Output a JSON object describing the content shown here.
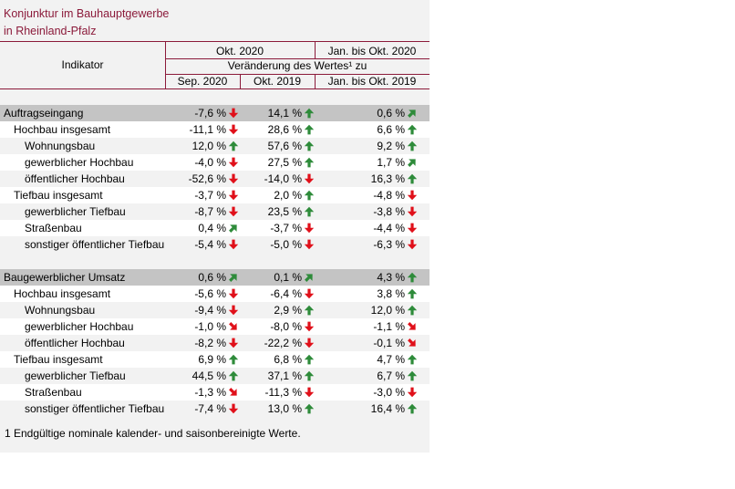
{
  "title_line1": "Konjunktur im Bauhauptgewerbe",
  "title_line2": "in Rheinland-Pfalz",
  "header": {
    "indikator": "Indikator",
    "okt2020": "Okt. 2020",
    "jan_okt2020": "Jan. bis Okt. 2020",
    "veraenderung": "Veränderung des Wertes¹ zu",
    "sep2020": "Sep. 2020",
    "okt2019": "Okt. 2019",
    "jan_okt2019": "Jan. bis Okt. 2019"
  },
  "colors": {
    "up": "#2e8b3a",
    "down": "#e0101a",
    "accent": "#8b1a3a"
  },
  "rows": [
    {
      "label": "Auftragseingang",
      "indent": 0,
      "section": true,
      "v1": "-7,6 %",
      "a1": "down",
      "v2": "14,1 %",
      "a2": "up",
      "v3": "0,6 %",
      "a3": "up-right"
    },
    {
      "label": "Hochbau insgesamt",
      "indent": 1,
      "v1": "-11,1 %",
      "a1": "down",
      "v2": "28,6 %",
      "a2": "up",
      "v3": "6,6 %",
      "a3": "up"
    },
    {
      "label": "Wohnungsbau",
      "indent": 2,
      "v1": "12,0 %",
      "a1": "up",
      "v2": "57,6 %",
      "a2": "up",
      "v3": "9,2 %",
      "a3": "up"
    },
    {
      "label": "gewerblicher Hochbau",
      "indent": 2,
      "v1": "-4,0 %",
      "a1": "down",
      "v2": "27,5 %",
      "a2": "up",
      "v3": "1,7 %",
      "a3": "up-right"
    },
    {
      "label": "öffentlicher Hochbau",
      "indent": 2,
      "v1": "-52,6 %",
      "a1": "down",
      "v2": "-14,0 %",
      "a2": "down",
      "v3": "16,3 %",
      "a3": "up"
    },
    {
      "label": "Tiefbau insgesamt",
      "indent": 1,
      "v1": "-3,7 %",
      "a1": "down",
      "v2": "2,0 %",
      "a2": "up",
      "v3": "-4,8 %",
      "a3": "down"
    },
    {
      "label": "gewerblicher Tiefbau",
      "indent": 2,
      "v1": "-8,7 %",
      "a1": "down",
      "v2": "23,5 %",
      "a2": "up",
      "v3": "-3,8 %",
      "a3": "down"
    },
    {
      "label": "Straßenbau",
      "indent": 2,
      "v1": "0,4 %",
      "a1": "up-right",
      "v2": "-3,7 %",
      "a2": "down",
      "v3": "-4,4 %",
      "a3": "down"
    },
    {
      "label": "sonstiger öffentlicher Tiefbau",
      "indent": 2,
      "v1": "-5,4 %",
      "a1": "down",
      "v2": "-5,0 %",
      "a2": "down",
      "v3": "-6,3 %",
      "a3": "down"
    },
    {
      "label": "Baugewerblicher Umsatz",
      "indent": 0,
      "section": true,
      "v1": "0,6 %",
      "a1": "up-right",
      "v2": "0,1 %",
      "a2": "up-right",
      "v3": "4,3 %",
      "a3": "up"
    },
    {
      "label": "Hochbau insgesamt",
      "indent": 1,
      "v1": "-5,6 %",
      "a1": "down",
      "v2": "-6,4 %",
      "a2": "down",
      "v3": "3,8 %",
      "a3": "up"
    },
    {
      "label": "Wohnungsbau",
      "indent": 2,
      "v1": "-9,4 %",
      "a1": "down",
      "v2": "2,9 %",
      "a2": "up",
      "v3": "12,0 %",
      "a3": "up"
    },
    {
      "label": "gewerblicher Hochbau",
      "indent": 2,
      "v1": "-1,0 %",
      "a1": "down-right",
      "v2": "-8,0 %",
      "a2": "down",
      "v3": "-1,1 %",
      "a3": "down-right"
    },
    {
      "label": "öffentlicher Hochbau",
      "indent": 2,
      "v1": "-8,2 %",
      "a1": "down",
      "v2": "-22,2 %",
      "a2": "down",
      "v3": "-0,1 %",
      "a3": "down-right"
    },
    {
      "label": "Tiefbau insgesamt",
      "indent": 1,
      "v1": "6,9 %",
      "a1": "up",
      "v2": "6,8 %",
      "a2": "up",
      "v3": "4,7 %",
      "a3": "up"
    },
    {
      "label": "gewerblicher Tiefbau",
      "indent": 2,
      "v1": "44,5 %",
      "a1": "up",
      "v2": "37,1 %",
      "a2": "up",
      "v3": "6,7 %",
      "a3": "up"
    },
    {
      "label": "Straßenbau",
      "indent": 2,
      "v1": "-1,3 %",
      "a1": "down-right",
      "v2": "-11,3 %",
      "a2": "down",
      "v3": "-3,0 %",
      "a3": "down"
    },
    {
      "label": "sonstiger öffentlicher Tiefbau",
      "indent": 2,
      "v1": "-7,4 %",
      "a1": "down",
      "v2": "13,0 %",
      "a2": "up",
      "v3": "16,4 %",
      "a3": "up"
    }
  ],
  "footnote": "1 Endgültige nominale kalender- und saisonbereinigte Werte."
}
